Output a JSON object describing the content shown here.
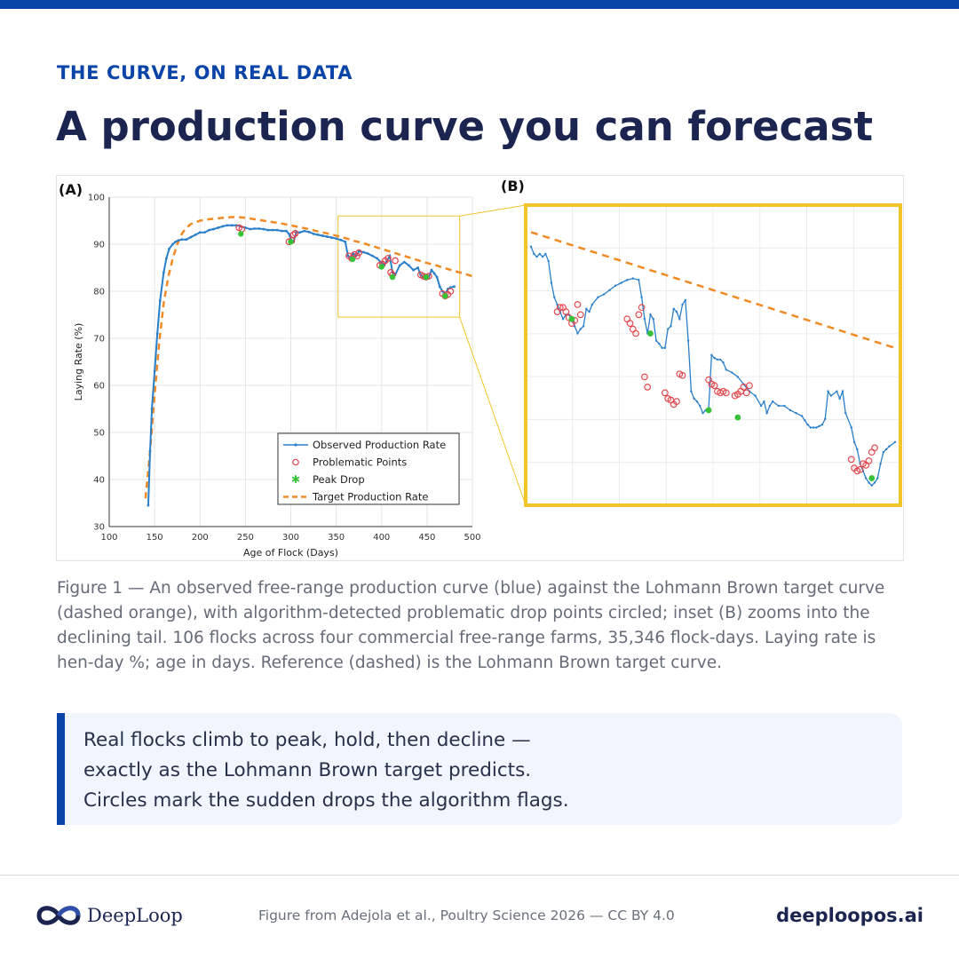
{
  "header": {
    "eyebrow": "THE CURVE, ON REAL DATA",
    "title": "A production curve you can forecast"
  },
  "figure": {
    "caption": "Figure 1 — An observed free-range production curve (blue) against the Lohmann Brown target curve (dashed orange), with algorithm-detected problematic drop points circled; inset (B) zooms into the declining tail. 106 flocks across four commercial free-range farms, 35,346 flock-days. Laying rate is hen-day %; age in days. Reference (dashed) is the Lohmann Brown target curve."
  },
  "callout": {
    "lines": [
      "Real flocks climb to peak, hold, then decline —",
      "exactly as the Lohmann Brown target predicts.",
      "Circles mark the sudden drops the algorithm flags."
    ]
  },
  "footer": {
    "brand": "DeepLoop",
    "credit": "Figure from Adejola et al., Poultry Science 2026 — CC BY 4.0",
    "site": "deeploopos.ai"
  },
  "colors": {
    "accent": "#0a44a8",
    "title": "#1b2550",
    "observed": "#2a7fc9",
    "target": "#f08a24",
    "problem": "#e0424a",
    "peak_drop": "#38c238",
    "inset_frame": "#f3c52a"
  },
  "chart_data": [
    {
      "panel_label": "(A)",
      "type": "line",
      "xlabel": "Age of Flock (Days)",
      "ylabel": "Laying Rate (%)",
      "xlim": [
        100,
        500
      ],
      "ylim": [
        30,
        100
      ],
      "x_ticks": [
        100,
        150,
        200,
        250,
        300,
        350,
        400,
        450,
        500
      ],
      "y_ticks": [
        30,
        40,
        50,
        60,
        70,
        80,
        90,
        100
      ],
      "grid": true,
      "legend_position": "lower-right",
      "series": [
        {
          "name": "Observed Production Rate",
          "style": "solid-markers",
          "x": [
            143,
            145,
            147,
            150,
            153,
            156,
            160,
            163,
            166,
            170,
            173,
            176,
            180,
            185,
            190,
            195,
            200,
            205,
            210,
            215,
            220,
            225,
            230,
            235,
            240,
            245,
            250,
            255,
            260,
            265,
            270,
            275,
            280,
            285,
            290,
            295,
            298,
            300,
            303,
            306,
            310,
            315,
            320,
            325,
            330,
            335,
            340,
            345,
            350,
            355,
            360,
            363,
            366,
            369,
            372,
            375,
            380,
            385,
            390,
            395,
            400,
            403,
            406,
            409,
            412,
            415,
            420,
            425,
            430,
            435,
            440,
            443,
            446,
            449,
            452,
            455,
            458,
            461,
            464,
            467,
            470,
            473,
            476,
            480
          ],
          "y": [
            34.5,
            46,
            55,
            63,
            71,
            78,
            84,
            87,
            89,
            90,
            90.5,
            90.8,
            91,
            91,
            91.5,
            92,
            92.5,
            92.5,
            93,
            93.2,
            93.5,
            93.8,
            94,
            94,
            94,
            93.8,
            93.5,
            93.2,
            93.3,
            93.3,
            93.2,
            93,
            93,
            93,
            92.8,
            92.8,
            92.2,
            91,
            90.5,
            92.5,
            92.5,
            92.8,
            92.6,
            92.2,
            92,
            91.8,
            91.6,
            91.4,
            91.2,
            90.9,
            90.5,
            87.5,
            87,
            88,
            87.5,
            88.5,
            88.3,
            88,
            87.5,
            87,
            86,
            85.5,
            86.5,
            87.5,
            84,
            83.5,
            85.5,
            86.2,
            85.5,
            84.5,
            85,
            83.5,
            83,
            83,
            83,
            84.5,
            83.8,
            83,
            81,
            80,
            79.3,
            80.5,
            80.8,
            81
          ]
        },
        {
          "name": "Target Production Rate",
          "style": "dashed",
          "x": [
            140,
            145,
            150,
            155,
            160,
            165,
            170,
            175,
            180,
            185,
            190,
            200,
            210,
            220,
            230,
            240,
            250,
            260,
            270,
            280,
            290,
            300,
            310,
            320,
            330,
            340,
            350,
            360,
            370,
            380,
            390,
            400,
            410,
            420,
            430,
            440,
            450,
            460,
            470,
            480,
            490,
            500
          ],
          "y": [
            36,
            46,
            58,
            69,
            77.5,
            83,
            87,
            90,
            92.2,
            93.5,
            94.3,
            95,
            95.3,
            95.5,
            95.7,
            95.8,
            95.6,
            95.3,
            95,
            94.7,
            94.4,
            94,
            93.6,
            93.2,
            92.7,
            92.3,
            91.8,
            91.3,
            90.7,
            90.2,
            89.6,
            89,
            88.4,
            87.8,
            87.2,
            86.6,
            86,
            85.5,
            84.9,
            84.3,
            83.8,
            83.2
          ]
        },
        {
          "name": "Problematic Points",
          "style": "circles",
          "x": [
            243,
            246,
            298,
            301,
            303,
            305,
            364,
            367,
            370,
            373,
            375,
            398,
            401,
            404,
            407,
            410,
            412,
            415,
            443,
            446,
            449,
            452,
            467,
            470,
            473,
            476
          ],
          "y": [
            93.5,
            93.2,
            90.5,
            90.8,
            92,
            92.3,
            87.5,
            87,
            87.8,
            87.5,
            88.2,
            85.5,
            85.8,
            86.5,
            87,
            84,
            83.5,
            86.5,
            83.5,
            83.2,
            83,
            83.2,
            79.5,
            79,
            79.3,
            80
          ]
        },
        {
          "name": "Peak Drop",
          "style": "star",
          "x": [
            245,
            300,
            368,
            400,
            412,
            449,
            470
          ],
          "y": [
            92.2,
            90.5,
            86.8,
            85.2,
            83,
            83,
            79
          ]
        }
      ]
    },
    {
      "panel_label": "(B)",
      "type": "line",
      "grid": true,
      "xlim": [
        355,
        480
      ],
      "ylim": [
        74,
        94
      ],
      "series": [
        {
          "name": "Observed Production Rate",
          "style": "solid-markers",
          "x": [
            355,
            356,
            357,
            358,
            359,
            360,
            361,
            362,
            363,
            364,
            365,
            366,
            367,
            368,
            369,
            370,
            371,
            372,
            373,
            374,
            375,
            376,
            378,
            380,
            382,
            384,
            386,
            388,
            390,
            392,
            393,
            394,
            395,
            396,
            397,
            398,
            399,
            400,
            401,
            402,
            403,
            404,
            405,
            406,
            407,
            408,
            409,
            410,
            411,
            412,
            413,
            414,
            415,
            416,
            417,
            418,
            419,
            420,
            421,
            422,
            424,
            426,
            428,
            430,
            432,
            434,
            435,
            436,
            437,
            438,
            440,
            442,
            444,
            446,
            448,
            449,
            450,
            451,
            452,
            453,
            454,
            455,
            456,
            457,
            458,
            460,
            461,
            462,
            463,
            465,
            466,
            467,
            468,
            469,
            470,
            471,
            472,
            473,
            474,
            475,
            476,
            477,
            478,
            480
          ],
          "y": [
            91.5,
            91,
            90.8,
            91,
            90.8,
            91,
            90.5,
            89,
            88,
            87.5,
            87,
            86.5,
            86.8,
            86.8,
            86.5,
            86,
            85.5,
            85.8,
            86,
            87.2,
            87,
            87.5,
            88,
            88.2,
            88.5,
            88.8,
            89,
            89.2,
            89.3,
            89.2,
            88,
            86.5,
            85.5,
            86.8,
            86.5,
            85,
            84.8,
            84.5,
            84.5,
            85.8,
            86,
            87.2,
            87,
            86.5,
            87.5,
            87.8,
            85,
            81.5,
            81,
            80.8,
            80.5,
            80,
            80.2,
            80.3,
            84,
            83.8,
            83.7,
            83.7,
            83.5,
            83,
            82.8,
            82.5,
            82,
            81.5,
            81.2,
            80.5,
            80.8,
            80,
            80.5,
            80.8,
            80.5,
            80.5,
            80.2,
            80,
            79.8,
            79.5,
            79.2,
            79,
            79,
            79,
            79.1,
            79.2,
            79.6,
            81.5,
            81.2,
            81.5,
            81,
            81.5,
            80,
            79,
            78,
            77.5,
            76.5,
            76,
            75.5,
            75.2,
            75,
            75.2,
            75.5,
            76.5,
            77.3,
            77.5,
            77.7,
            78
          ]
        },
        {
          "name": "Target Production Rate",
          "style": "dashed",
          "x": [
            355,
            480
          ],
          "y": [
            92.5,
            84.5
          ]
        },
        {
          "name": "Problematic Points",
          "style": "circles",
          "x": [
            364,
            365,
            366,
            367,
            368,
            369,
            370,
            371,
            372,
            388,
            389,
            390,
            391,
            392,
            393,
            394,
            395,
            401,
            402,
            403,
            404,
            405,
            406,
            407,
            416,
            417,
            418,
            419,
            420,
            421,
            422,
            425,
            426,
            427,
            428,
            429,
            430,
            465,
            466,
            467,
            468,
            469,
            470,
            471,
            472,
            473
          ],
          "y": [
            87,
            87.3,
            87.3,
            87,
            86.6,
            86.2,
            86.4,
            87.5,
            86.8,
            86.5,
            86.2,
            85.8,
            85.5,
            86.8,
            87.3,
            82.5,
            81.8,
            81.4,
            81,
            80.9,
            80.6,
            80.8,
            82.7,
            82.6,
            82.3,
            82,
            81.9,
            81.5,
            81.4,
            81.5,
            81.4,
            81.2,
            81.3,
            81.5,
            81.8,
            81.4,
            81.9,
            76.8,
            76.2,
            76,
            76.1,
            76.5,
            76.4,
            76.7,
            77.3,
            77.6
          ]
        },
        {
          "name": "Peak Drop",
          "style": "star",
          "x": [
            369,
            396,
            416,
            426,
            472
          ],
          "y": [
            86.5,
            85.5,
            80.2,
            79.7,
            75.5
          ]
        }
      ]
    }
  ]
}
